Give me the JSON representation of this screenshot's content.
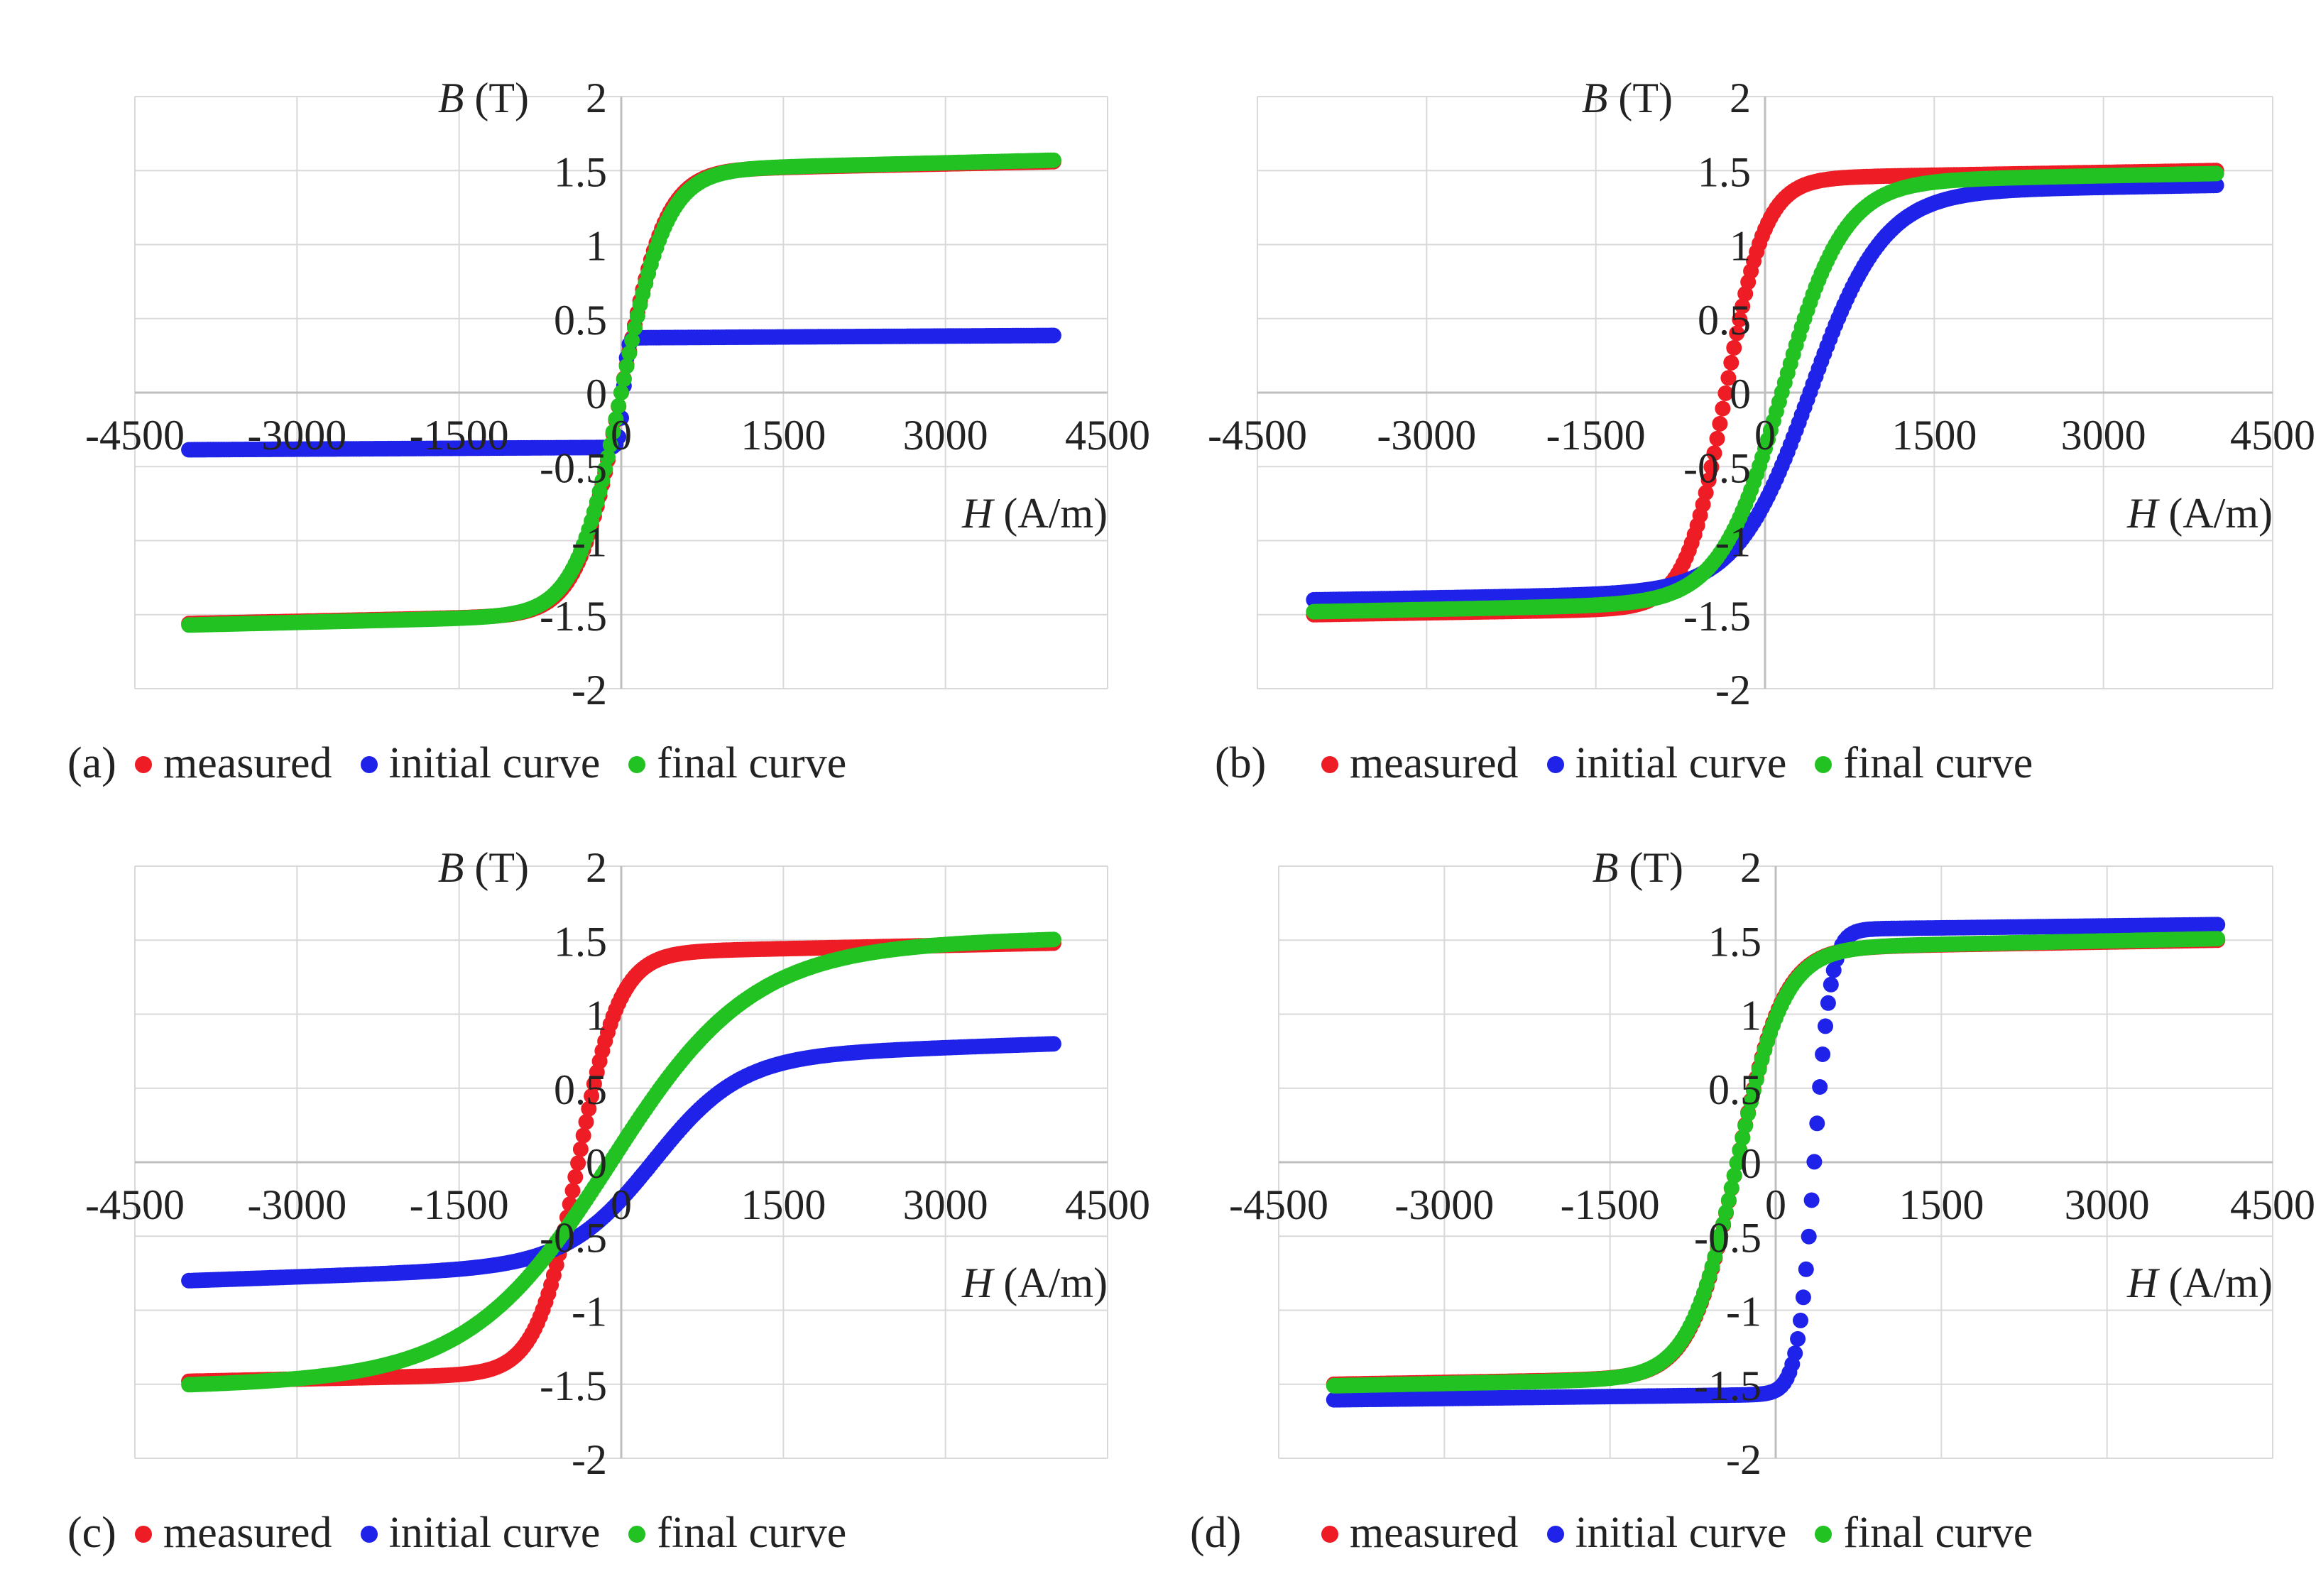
{
  "figure": {
    "legend": [
      {
        "label": "measured",
        "color": "#ee1c24"
      },
      {
        "label": "initial curve",
        "color": "#1f22e8"
      },
      {
        "label": "final curve",
        "color": "#22c222"
      }
    ]
  },
  "chart_data": [
    {
      "type": "scatter",
      "panel_label": "(a)",
      "title": "",
      "xlabel_italic": "H",
      "xlabel_unit": " (A/m)",
      "ylabel_italic": "B",
      "ylabel_unit": " (T)",
      "xlim": [
        -4500,
        4500
      ],
      "ylim": [
        -2,
        2
      ],
      "xticks": [
        -4500,
        -3000,
        -1500,
        0,
        1500,
        3000,
        4500
      ],
      "yticks": [
        -2,
        -1.5,
        -1,
        -0.5,
        0,
        0.5,
        1,
        1.5,
        2
      ],
      "x_tick_labels": [
        "-4500",
        "-3000",
        "-1500",
        "0",
        "1500",
        "3000",
        "4500"
      ],
      "y_tick_labels": [
        "-2",
        "-1.5",
        "-1",
        "-0.5",
        "0",
        "0.5",
        "1",
        "1.5",
        "2"
      ],
      "series": [
        {
          "name": "measured",
          "color": "#ee1c24",
          "params": {
            "Bs": 1.5,
            "H0": 0,
            "a": 400,
            "m": 0.06
          }
        },
        {
          "name": "initial curve",
          "color": "#1f22e8",
          "params": {
            "Bs": 0.37,
            "H0": 20,
            "a": 40,
            "m": 0.016
          }
        },
        {
          "name": "final curve",
          "color": "#22c222",
          "params": {
            "Bs": 1.5,
            "H0": 0,
            "a": 420,
            "m": 0.07
          }
        }
      ]
    },
    {
      "type": "scatter",
      "panel_label": "(b)",
      "title": "",
      "xlabel_italic": "H",
      "xlabel_unit": " (A/m)",
      "ylabel_italic": "B",
      "ylabel_unit": " (T)",
      "xlim": [
        -4500,
        4500
      ],
      "ylim": [
        -2,
        2
      ],
      "xticks": [
        -4500,
        -3000,
        -1500,
        0,
        1500,
        3000,
        4500
      ],
      "yticks": [
        -2,
        -1.5,
        -1,
        -0.5,
        0,
        0.5,
        1,
        1.5,
        2
      ],
      "x_tick_labels": [
        "-4500",
        "-3000",
        "-1500",
        "0",
        "1500",
        "3000",
        "4500"
      ],
      "y_tick_labels": [
        "-2",
        "-1.5",
        "-1",
        "-0.5",
        "0",
        "0.5",
        "1",
        "1.5",
        "2"
      ],
      "series": [
        {
          "name": "measured",
          "color": "#ee1c24",
          "params": {
            "Bs": 1.45,
            "H0": -350,
            "a": 350,
            "m": 0.05
          }
        },
        {
          "name": "initial curve",
          "color": "#1f22e8",
          "params": {
            "Bs": 1.35,
            "H0": 400,
            "a": 650,
            "m": 0.05
          }
        },
        {
          "name": "final curve",
          "color": "#22c222",
          "params": {
            "Bs": 1.42,
            "H0": 150,
            "a": 550,
            "m": 0.06
          }
        }
      ]
    },
    {
      "type": "scatter",
      "panel_label": "(c)",
      "title": "",
      "xlabel_italic": "H",
      "xlabel_unit": " (A/m)",
      "ylabel_italic": "B",
      "ylabel_unit": " (T)",
      "xlim": [
        -4500,
        4500
      ],
      "ylim": [
        -2,
        2
      ],
      "xticks": [
        -4500,
        -3000,
        -1500,
        0,
        1500,
        3000,
        4500
      ],
      "yticks": [
        -2,
        -1.5,
        -1,
        -0.5,
        0,
        0.5,
        1,
        1.5,
        2
      ],
      "x_tick_labels": [
        "-4500",
        "-3000",
        "-1500",
        "0",
        "1500",
        "3000",
        "4500"
      ],
      "y_tick_labels": [
        "-2",
        "-1.5",
        "-1",
        "-0.5",
        "0",
        "0.5",
        "1",
        "1.5",
        "2"
      ],
      "series": [
        {
          "name": "measured",
          "color": "#ee1c24",
          "params": {
            "Bs": 1.42,
            "H0": -400,
            "a": 380,
            "m": 0.06
          }
        },
        {
          "name": "initial curve",
          "color": "#1f22e8",
          "params": {
            "Bs": 0.7,
            "H0": 300,
            "a": 800,
            "m": 0.1
          }
        },
        {
          "name": "final curve",
          "color": "#22c222",
          "params": {
            "Bs": 1.45,
            "H0": -100,
            "a": 1300,
            "m": 0.06
          }
        }
      ]
    },
    {
      "type": "scatter",
      "panel_label": "(d)",
      "title": "",
      "xlabel_italic": "H",
      "xlabel_unit": " (A/m)",
      "ylabel_italic": "B",
      "ylabel_unit": " (T)",
      "xlim": [
        -4500,
        4500
      ],
      "ylim": [
        -2,
        2
      ],
      "xticks": [
        -4500,
        -3000,
        -1500,
        0,
        1500,
        3000,
        4500
      ],
      "yticks": [
        -2,
        -1.5,
        -1,
        -0.5,
        0,
        0.5,
        1,
        1.5,
        2
      ],
      "x_tick_labels": [
        "-4500",
        "-3000",
        "-1500",
        "0",
        "1500",
        "3000",
        "4500"
      ],
      "y_tick_labels": [
        "-2",
        "-1.5",
        "-1",
        "-0.5",
        "0",
        "0.5",
        "1",
        "1.5",
        "2"
      ],
      "series": [
        {
          "name": "measured",
          "color": "#ee1c24",
          "params": {
            "Bs": 1.45,
            "H0": -350,
            "a": 420,
            "m": 0.05
          }
        },
        {
          "name": "initial curve",
          "color": "#1f22e8",
          "params": {
            "Bs": 1.57,
            "H0": 350,
            "a": 150,
            "m": 0.035
          }
        },
        {
          "name": "final curve",
          "color": "#22c222",
          "params": {
            "Bs": 1.45,
            "H0": -350,
            "a": 430,
            "m": 0.06
          }
        }
      ]
    }
  ]
}
